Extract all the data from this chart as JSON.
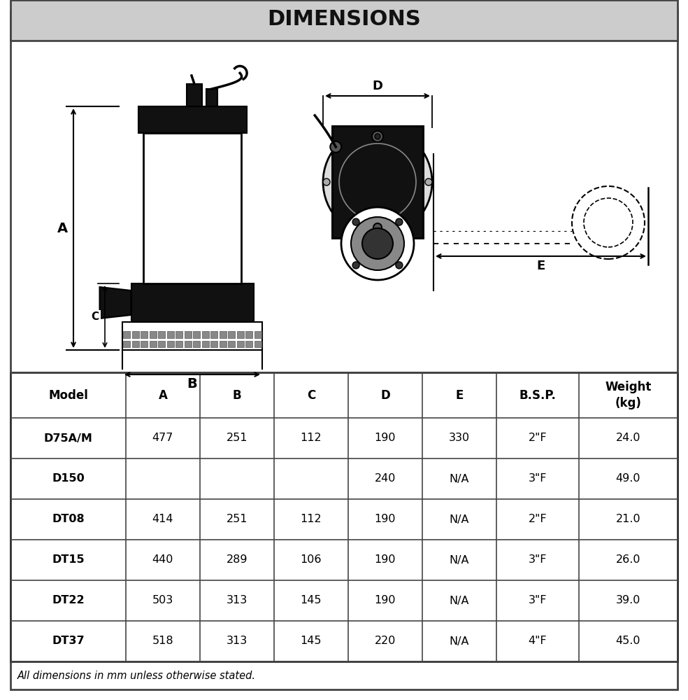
{
  "title": "DIMENSIONS",
  "title_bg": "#cccccc",
  "border_color": "#444444",
  "table_headers": [
    "Model",
    "A",
    "B",
    "C",
    "D",
    "E",
    "B.S.P.",
    "Weight\n(kg)"
  ],
  "table_rows": [
    [
      "D75A/M",
      "477",
      "251",
      "112",
      "190",
      "330",
      "2\"F",
      "24.0"
    ],
    [
      "D150",
      "",
      "",
      "",
      "240",
      "N/A",
      "3\"F",
      "49.0"
    ],
    [
      "DT08",
      "414",
      "251",
      "112",
      "190",
      "N/A",
      "2\"F",
      "21.0"
    ],
    [
      "DT15",
      "440",
      "289",
      "106",
      "190",
      "N/A",
      "3\"F",
      "26.0"
    ],
    [
      "DT22",
      "503",
      "313",
      "145",
      "190",
      "N/A",
      "3\"F",
      "39.0"
    ],
    [
      "DT37",
      "518",
      "313",
      "145",
      "220",
      "N/A",
      "4\"F",
      "45.0"
    ]
  ],
  "footnote": "All dimensions in mm unless otherwise stated.",
  "col_widths_rel": [
    1.4,
    0.9,
    0.9,
    0.9,
    0.9,
    0.9,
    1.0,
    1.2
  ]
}
